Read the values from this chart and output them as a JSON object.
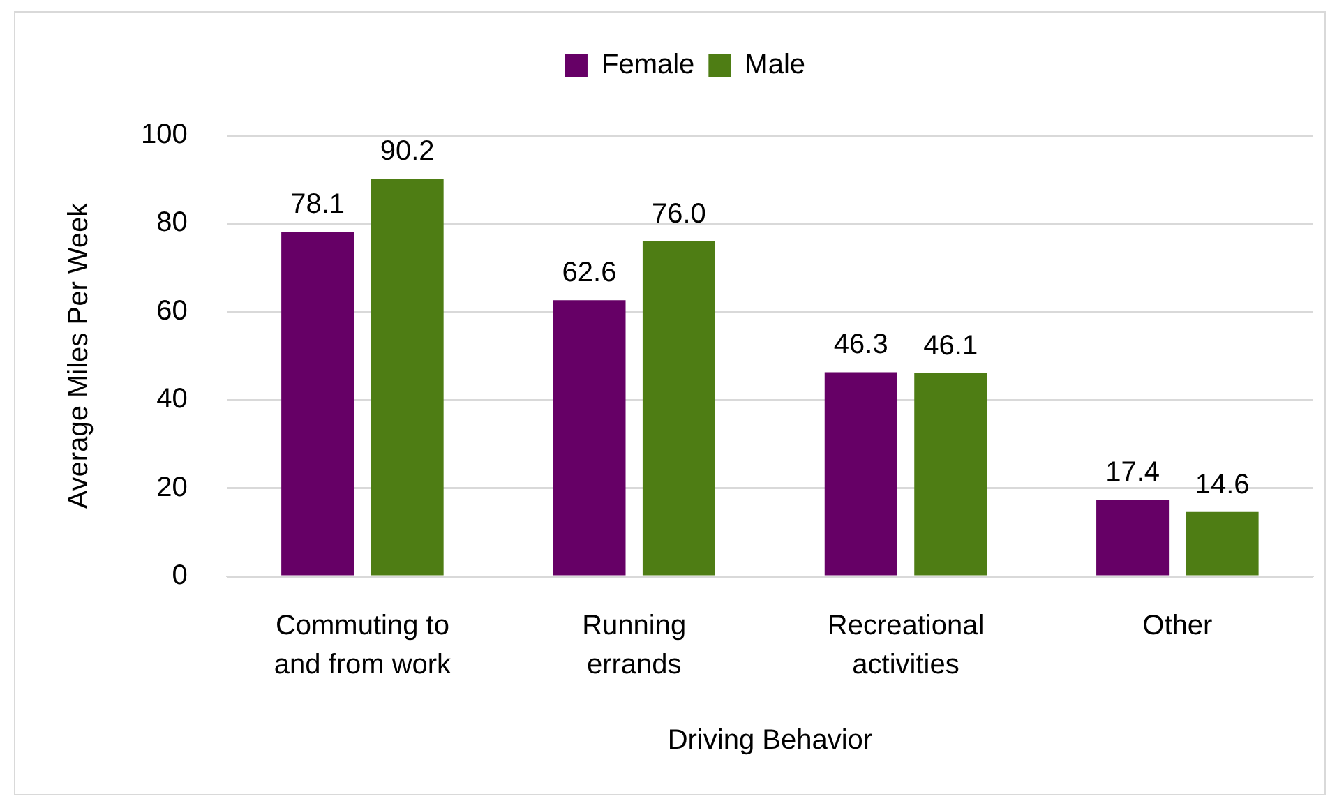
{
  "chart_data": {
    "type": "bar",
    "xlabel": "Driving Behavior",
    "ylabel": "Average Miles Per Week",
    "categories": [
      "Commuting to and from work",
      "Running errands",
      "Recreational activities",
      "Other"
    ],
    "series": [
      {
        "name": "Female",
        "color": "#660066",
        "values": [
          78.1,
          62.6,
          46.3,
          17.4
        ],
        "value_labels": [
          "78.1",
          "62.6",
          "46.3",
          "17.4"
        ]
      },
      {
        "name": "Male",
        "color": "#4e7d14",
        "values": [
          90.2,
          76.0,
          46.1,
          14.6
        ],
        "value_labels": [
          "90.2",
          "76.0",
          "46.1",
          "14.6"
        ]
      }
    ],
    "ylim": [
      0,
      100
    ],
    "yticks": [
      0,
      20,
      40,
      60,
      80,
      100
    ],
    "grid": "y",
    "legend": "top"
  }
}
